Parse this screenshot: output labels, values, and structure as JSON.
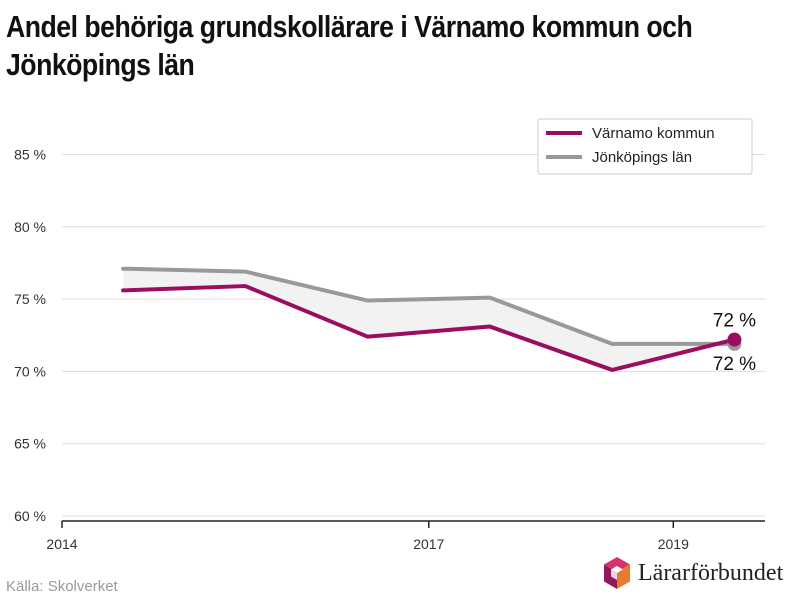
{
  "title_lines": [
    "Andel behöriga grundskollärare i Värnamo kommun och",
    "Jönköpings län"
  ],
  "source": "Källa: Skolverket",
  "brand": "Lärarförbundet",
  "colors": {
    "varnamo": "#9a0d62",
    "jonkoping": "#999999",
    "band": "#f2f2f2",
    "grid": "#dddddd"
  },
  "chart_data": {
    "type": "line",
    "title": "Andel behöriga grundskollärare i Värnamo kommun och Jönköpings län",
    "x": [
      2014.5,
      2015.5,
      2016.5,
      2017.5,
      2018.5,
      2019.5
    ],
    "xticks": [
      2014,
      2017,
      2019
    ],
    "xtick_labels": [
      "2014",
      "2017",
      "2019"
    ],
    "xlim": [
      2014,
      2019.75
    ],
    "ylim": [
      60,
      86
    ],
    "yticks": [
      60,
      65,
      70,
      75,
      80,
      85
    ],
    "ytick_labels": [
      "60 %",
      "65 %",
      "70 %",
      "75 %",
      "80 %",
      "85 %"
    ],
    "series": [
      {
        "name": "Värnamo kommun",
        "values": [
          75.6,
          75.9,
          72.4,
          73.1,
          70.1,
          72.2
        ]
      },
      {
        "name": "Jönköpings län",
        "values": [
          77.1,
          76.9,
          74.9,
          75.1,
          71.9,
          71.9
        ]
      }
    ],
    "end_labels": [
      "72 %",
      "72 %"
    ],
    "legend": [
      "Värnamo kommun",
      "Jönköpings län"
    ],
    "legend_position": "top-right",
    "xlabel": "",
    "ylabel": ""
  }
}
